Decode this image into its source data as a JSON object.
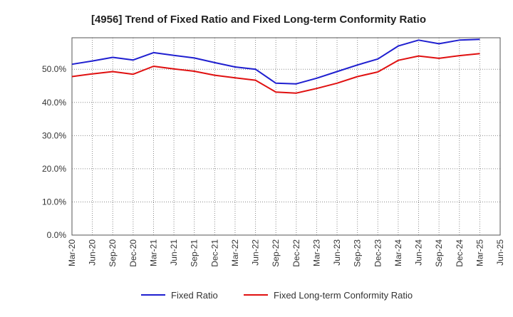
{
  "chart_data": {
    "type": "line",
    "title": "[4956]  Trend of Fixed Ratio and Fixed Long-term Conformity Ratio",
    "xlabel": "",
    "ylabel": "",
    "categories": [
      "Mar-20",
      "Jun-20",
      "Sep-20",
      "Dec-20",
      "Mar-21",
      "Jun-21",
      "Sep-21",
      "Dec-21",
      "Mar-22",
      "Jun-22",
      "Sep-22",
      "Dec-22",
      "Mar-23",
      "Jun-23",
      "Sep-23",
      "Dec-23",
      "Mar-24",
      "Jun-24",
      "Sep-24",
      "Dec-24",
      "Mar-25",
      "Jun-25"
    ],
    "y_ticks": [
      "0.0%",
      "10.0%",
      "20.0%",
      "30.0%",
      "40.0%",
      "50.0%"
    ],
    "ylim": [
      0,
      59.5
    ],
    "grid": true,
    "legend_position": "bottom",
    "series": [
      {
        "name": "Fixed Ratio",
        "color": "#1f1fd0",
        "values": [
          51.5,
          52.5,
          53.6,
          52.8,
          55.0,
          54.2,
          53.4,
          52.0,
          50.7,
          50.0,
          45.8,
          45.6,
          47.3,
          49.3,
          51.3,
          53.1,
          57.0,
          58.8,
          57.7,
          58.8,
          59.0,
          null
        ]
      },
      {
        "name": "Fixed Long-term Conformity Ratio",
        "color": "#e01010",
        "values": [
          47.8,
          48.6,
          49.3,
          48.5,
          50.9,
          50.1,
          49.4,
          48.2,
          47.4,
          46.7,
          43.1,
          42.8,
          44.2,
          45.8,
          47.8,
          49.2,
          52.7,
          54.0,
          53.3,
          54.1,
          54.7,
          null
        ]
      }
    ]
  }
}
